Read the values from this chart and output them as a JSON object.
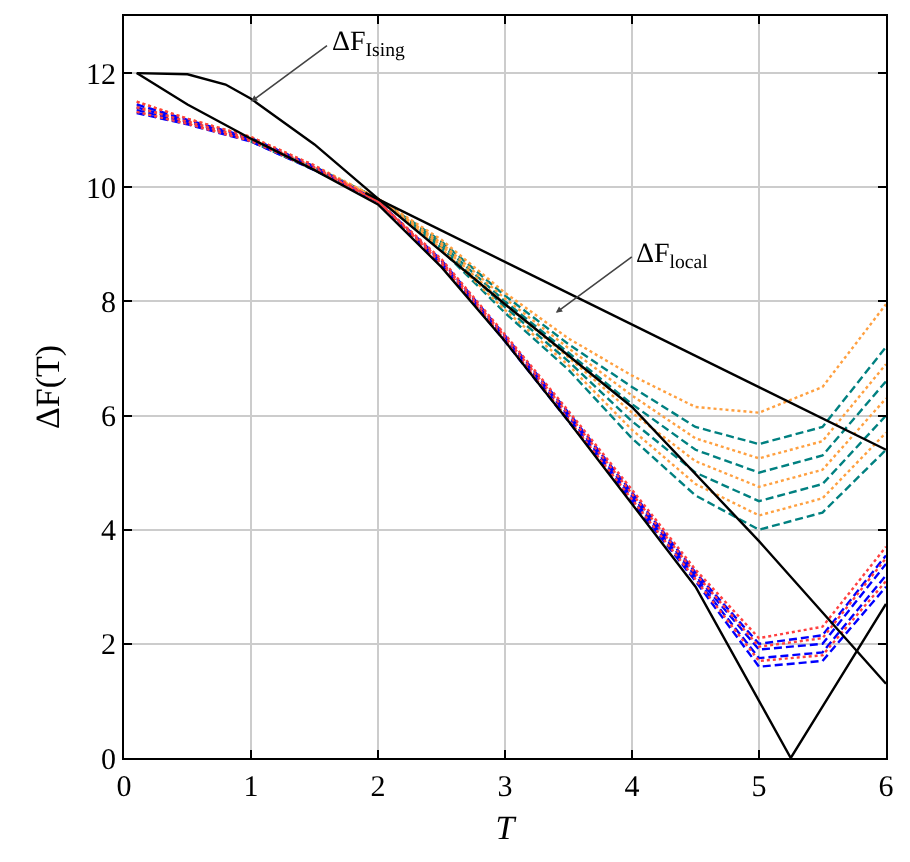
{
  "chart_data": {
    "type": "line",
    "xlabel": "T",
    "ylabel": "ΔF(T)",
    "x": [
      0.1,
      0.5,
      1,
      1.5,
      2,
      2.5,
      3,
      3.5,
      4,
      4.5,
      5,
      5.5,
      6
    ],
    "xlim": [
      0,
      6
    ],
    "xticks": [
      0,
      1,
      2,
      3,
      4,
      5,
      6
    ],
    "ylim": [
      0,
      13
    ],
    "yticks": [
      0,
      2,
      4,
      6,
      8,
      10,
      12
    ],
    "grid": true,
    "marker": "none",
    "series": [
      {
        "color": "#008080",
        "line_style": "dashed",
        "values": [
          null,
          null,
          10.8,
          10.3,
          9.8,
          8.9,
          7.8,
          6.8,
          5.6,
          4.6,
          4.0,
          4.3,
          5.4
        ]
      },
      {
        "color": "#008080",
        "line_style": "dashed",
        "values": [
          null,
          null,
          10.82,
          10.32,
          9.8,
          8.95,
          7.9,
          6.95,
          5.9,
          5.0,
          4.5,
          4.8,
          6.0
        ]
      },
      {
        "color": "#008080",
        "line_style": "dashed",
        "values": [
          null,
          null,
          10.84,
          10.34,
          9.8,
          9.0,
          8.0,
          7.1,
          6.2,
          5.4,
          5.0,
          5.3,
          6.6
        ]
      },
      {
        "color": "#008080",
        "line_style": "dashed",
        "values": [
          null,
          null,
          10.86,
          10.36,
          9.8,
          9.05,
          8.1,
          7.25,
          6.5,
          5.8,
          5.5,
          5.8,
          7.2
        ]
      },
      {
        "color": "#ffa040",
        "line_style": "dotted",
        "values": [
          11.32,
          11.11,
          10.81,
          10.31,
          9.8,
          8.92,
          7.85,
          6.88,
          5.75,
          4.8,
          4.25,
          4.55,
          5.7
        ]
      },
      {
        "color": "#ffa040",
        "line_style": "dotted",
        "values": [
          11.38,
          11.14,
          10.83,
          10.33,
          9.8,
          8.98,
          7.95,
          7.02,
          6.05,
          5.2,
          4.75,
          5.05,
          6.3
        ]
      },
      {
        "color": "#ffa040",
        "line_style": "dotted",
        "values": [
          11.42,
          11.16,
          10.85,
          10.35,
          9.8,
          9.02,
          8.05,
          7.18,
          6.35,
          5.6,
          5.25,
          5.55,
          6.9
        ]
      },
      {
        "color": "#ffa040",
        "line_style": "dotted",
        "values": [
          11.5,
          11.2,
          10.88,
          10.38,
          9.8,
          9.08,
          8.15,
          7.35,
          6.7,
          6.15,
          6.05,
          6.5,
          7.95
        ]
      },
      {
        "color": "#0000ff",
        "line_style": "dashed",
        "values": [
          11.3,
          11.1,
          10.8,
          10.3,
          9.75,
          8.65,
          7.3,
          5.9,
          4.5,
          3.1,
          1.6,
          1.7,
          3.0
        ]
      },
      {
        "color": "#0000ff",
        "line_style": "dashed",
        "values": [
          11.35,
          11.12,
          10.82,
          10.32,
          9.75,
          8.68,
          7.33,
          5.95,
          4.55,
          3.15,
          1.75,
          1.85,
          3.2
        ]
      },
      {
        "color": "#0000ff",
        "line_style": "dashed",
        "values": [
          11.4,
          11.15,
          10.84,
          10.34,
          9.75,
          8.7,
          7.36,
          6.0,
          4.6,
          3.2,
          1.9,
          2.0,
          3.4
        ]
      },
      {
        "color": "#0000ff",
        "line_style": "dashed",
        "values": [
          11.45,
          11.18,
          10.86,
          10.36,
          9.75,
          8.72,
          7.4,
          6.05,
          4.65,
          3.25,
          2.0,
          2.15,
          3.55
        ]
      },
      {
        "color": "#ff4040",
        "line_style": "dotted",
        "values": [
          11.32,
          11.11,
          10.81,
          10.31,
          9.75,
          8.66,
          7.32,
          5.93,
          4.53,
          3.13,
          1.7,
          1.8,
          3.1
        ]
      },
      {
        "color": "#ff4040",
        "line_style": "dotted",
        "values": [
          11.4,
          11.15,
          10.84,
          10.34,
          9.75,
          8.7,
          7.38,
          6.02,
          4.63,
          3.23,
          1.95,
          2.1,
          3.5
        ]
      },
      {
        "color": "#ff4040",
        "line_style": "dotted",
        "values": [
          11.5,
          11.2,
          10.88,
          10.38,
          9.75,
          8.74,
          7.42,
          6.08,
          4.7,
          3.3,
          2.1,
          2.3,
          3.7
        ]
      },
      {
        "color": "#000000",
        "line_style": "solid",
        "x": [
          0.1,
          0.5,
          1,
          1.5,
          2,
          2.5,
          3,
          3.5,
          4,
          4.5,
          5,
          5.25,
          5.5,
          6
        ],
        "values": [
          12,
          11.45,
          10.85,
          10.3,
          9.7,
          8.6,
          7.3,
          5.9,
          4.45,
          3.0,
          1.0,
          0,
          0.9,
          2.7
        ]
      },
      {
        "color": "#000000",
        "line_style": "solid",
        "x": [
          0.1,
          0.5,
          0.8,
          1,
          1.5,
          2,
          3,
          4,
          5,
          6
        ],
        "values": [
          12,
          11.98,
          11.8,
          11.55,
          10.75,
          9.8,
          7.95,
          6.15,
          3.8,
          1.3
        ]
      },
      {
        "color": "#000000",
        "line_style": "solid",
        "x": [
          1.9,
          6
        ],
        "values": [
          9.9,
          5.4
        ]
      }
    ],
    "annotations": [
      {
        "text": "ΔF$_{Ising}$",
        "x": 1,
        "y": 11.5
      },
      {
        "text": "ΔF$_{local}$",
        "x": 3.4,
        "y": 7.8
      }
    ]
  }
}
